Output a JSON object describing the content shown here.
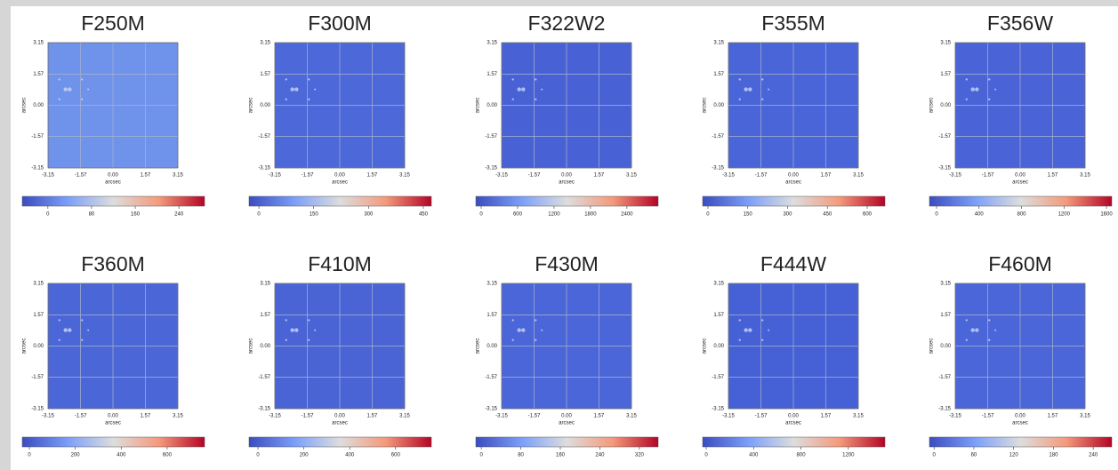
{
  "chart_data": [
    {
      "type": "image",
      "title": "F250M",
      "xlabel": "arcsec",
      "ylabel": "arcsec",
      "color": "#6f92ea",
      "grid": true,
      "colormap": "coolwarm",
      "xlim": [
        -3.15,
        3.15
      ],
      "ylim": [
        -3.15,
        3.15
      ],
      "xticks": [
        -3.15,
        -1.57,
        {
          "value": 0,
          "label": "0.00"
        },
        1.57,
        3.15
      ],
      "yticks": [
        -3.15,
        -1.57,
        {
          "value": 0,
          "label": "0.00"
        },
        1.57,
        3.15
      ],
      "clim": [
        -47,
        287
      ],
      "cticks": [
        0,
        80,
        160,
        240
      ]
    },
    {
      "type": "image",
      "title": "F300M",
      "xlabel": "arcsec",
      "ylabel": "arcsec",
      "color": "#4d68d8",
      "grid": true,
      "colormap": "coolwarm",
      "xlim": [
        -3.15,
        3.15
      ],
      "ylim": [
        -3.15,
        3.15
      ],
      "xticks": [
        -3.15,
        -1.57,
        {
          "value": 0,
          "label": "0.00"
        },
        1.57,
        3.15
      ],
      "yticks": [
        -3.15,
        -1.57,
        {
          "value": 0,
          "label": "0.00"
        },
        1.57,
        3.15
      ],
      "clim": [
        -27,
        472
      ],
      "cticks": [
        0,
        150,
        300,
        450
      ]
    },
    {
      "type": "image",
      "title": "F322W2",
      "xlabel": "arcsec",
      "ylabel": "arcsec",
      "color": "#4862d6",
      "grid": true,
      "colormap": "coolwarm",
      "xlim": [
        -3.15,
        3.15
      ],
      "ylim": [
        -3.15,
        3.15
      ],
      "xticks": [
        -3.15,
        -1.57,
        {
          "value": 0,
          "label": "0.00"
        },
        1.57,
        3.15
      ],
      "yticks": [
        -3.15,
        -1.57,
        {
          "value": 0,
          "label": "0.00"
        },
        1.57,
        3.15
      ],
      "clim": [
        -88,
        2915
      ],
      "cticks": [
        0,
        600,
        1200,
        1800,
        2400
      ]
    },
    {
      "type": "image",
      "title": "F355M",
      "xlabel": "arcsec",
      "ylabel": "arcsec",
      "color": "#4a65d7",
      "grid": true,
      "colormap": "coolwarm",
      "xlim": [
        -3.15,
        3.15
      ],
      "ylim": [
        -3.15,
        3.15
      ],
      "xticks": [
        -3.15,
        -1.57,
        {
          "value": 0,
          "label": "0.00"
        },
        1.57,
        3.15
      ],
      "yticks": [
        -3.15,
        -1.57,
        {
          "value": 0,
          "label": "0.00"
        },
        1.57,
        3.15
      ],
      "clim": [
        -20,
        667
      ],
      "cticks": [
        0,
        150,
        300,
        450,
        600
      ]
    },
    {
      "type": "image",
      "title": "F356W",
      "xlabel": "arcsec",
      "ylabel": "arcsec",
      "color": "#4a64d7",
      "grid": true,
      "colormap": "coolwarm",
      "xlim": [
        -3.15,
        3.15
      ],
      "ylim": [
        -3.15,
        3.15
      ],
      "xticks": [
        -3.15,
        -1.57,
        {
          "value": 0,
          "label": "0.00"
        },
        1.57,
        3.15
      ],
      "yticks": [
        -3.15,
        -1.57,
        {
          "value": 0,
          "label": "0.00"
        },
        1.57,
        3.15
      ],
      "clim": [
        -67,
        1650
      ],
      "cticks": [
        0,
        400,
        800,
        1200,
        1600
      ]
    },
    {
      "type": "image",
      "title": "F360M",
      "xlabel": "arcsec",
      "ylabel": "arcsec",
      "color": "#4b66d7",
      "grid": true,
      "colormap": "coolwarm",
      "xlim": [
        -3.15,
        3.15
      ],
      "ylim": [
        -3.15,
        3.15
      ],
      "xticks": [
        -3.15,
        -1.57,
        {
          "value": 0,
          "label": "0.00"
        },
        1.57,
        3.15
      ],
      "yticks": [
        -3.15,
        -1.57,
        {
          "value": 0,
          "label": "0.00"
        },
        1.57,
        3.15
      ],
      "clim": [
        -31,
        763
      ],
      "cticks": [
        0,
        200,
        400,
        600
      ]
    },
    {
      "type": "image",
      "title": "F410M",
      "xlabel": "arcsec",
      "ylabel": "arcsec",
      "color": "#4a64d6",
      "grid": true,
      "colormap": "coolwarm",
      "xlim": [
        -3.15,
        3.15
      ],
      "ylim": [
        -3.15,
        3.15
      ],
      "xticks": [
        -3.15,
        -1.57,
        {
          "value": 0,
          "label": "0.00"
        },
        1.57,
        3.15
      ],
      "yticks": [
        -3.15,
        -1.57,
        {
          "value": 0,
          "label": "0.00"
        },
        1.57,
        3.15
      ],
      "clim": [
        -39,
        756
      ],
      "cticks": [
        0,
        200,
        400,
        600
      ]
    },
    {
      "type": "image",
      "title": "F430M",
      "xlabel": "arcsec",
      "ylabel": "arcsec",
      "color": "#4b66d8",
      "grid": true,
      "colormap": "coolwarm",
      "xlim": [
        -3.15,
        3.15
      ],
      "ylim": [
        -3.15,
        3.15
      ],
      "xticks": [
        -3.15,
        -1.57,
        {
          "value": 0,
          "label": "0.00"
        },
        1.57,
        3.15
      ],
      "yticks": [
        -3.15,
        -1.57,
        {
          "value": 0,
          "label": "0.00"
        },
        1.57,
        3.15
      ],
      "clim": [
        -11,
        358
      ],
      "cticks": [
        0,
        80,
        160,
        240,
        320
      ]
    },
    {
      "type": "image",
      "title": "F444W",
      "xlabel": "arcsec",
      "ylabel": "arcsec",
      "color": "#4660d5",
      "grid": true,
      "colormap": "coolwarm",
      "xlim": [
        -3.15,
        3.15
      ],
      "ylim": [
        -3.15,
        3.15
      ],
      "xticks": [
        -3.15,
        -1.57,
        {
          "value": 0,
          "label": "0.00"
        },
        1.57,
        3.15
      ],
      "yticks": [
        -3.15,
        -1.57,
        {
          "value": 0,
          "label": "0.00"
        },
        1.57,
        3.15
      ],
      "clim": [
        -30,
        1509
      ],
      "cticks": [
        0,
        400,
        800,
        1200
      ]
    },
    {
      "type": "image",
      "title": "F460M",
      "xlabel": "arcsec",
      "ylabel": "arcsec",
      "color": "#4b66d8",
      "grid": true,
      "colormap": "coolwarm",
      "xlim": [
        -3.15,
        3.15
      ],
      "ylim": [
        -3.15,
        3.15
      ],
      "xticks": [
        -3.15,
        -1.57,
        {
          "value": 0,
          "label": "0.00"
        },
        1.57,
        3.15
      ],
      "yticks": [
        -3.15,
        -1.57,
        {
          "value": 0,
          "label": "0.00"
        },
        1.57,
        3.15
      ],
      "clim": [
        -7,
        268
      ],
      "cticks": [
        0,
        60,
        120,
        180,
        240
      ]
    }
  ]
}
